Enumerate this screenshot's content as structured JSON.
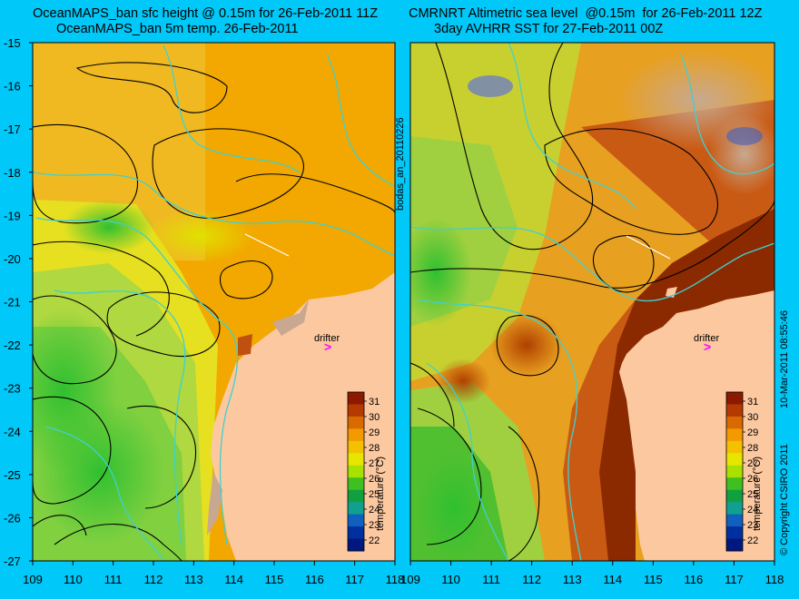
{
  "left_panel": {
    "title_line1": "OceanMAPS_ban sfc height @ 0.15m for 26-Feb-2011 11Z",
    "title_line2": "OceanMAPS_ban 5m temp. 26-Feb-2011"
  },
  "right_panel": {
    "title_line1": "CMRNRT Altimetric sea level  @0.15m  for 26-Feb-2011 12Z",
    "title_line2": "3day AVHRR SST for 27-Feb-2011 00Z"
  },
  "side_labels": {
    "analysis_id": "bodas_an_20110226",
    "timestamp": "10-Mar-2011 08:55:46",
    "copyright": "© Copyright CSIRO 2011"
  },
  "y_ticks": [
    "-15",
    "-16",
    "-17",
    "-18",
    "-19",
    "-20",
    "-21",
    "-22",
    "-23",
    "-24",
    "-25",
    "-26",
    "-27"
  ],
  "x_ticks": [
    "109",
    "110",
    "111",
    "112",
    "113",
    "114",
    "115",
    "116",
    "117",
    "118"
  ],
  "drifter_label": "drifter",
  "colorbar": {
    "label": "temperature (°C)",
    "ticks": [
      "31",
      "30",
      "29",
      "28",
      "27",
      "26",
      "25",
      "24",
      "23",
      "22"
    ],
    "colors": [
      "#8b1a00",
      "#b53a00",
      "#d86a00",
      "#f29a00",
      "#f5c000",
      "#e6e600",
      "#a8e000",
      "#40c020",
      "#10a040",
      "#10a090",
      "#1060c0",
      "#0030a0",
      "#001880"
    ]
  },
  "colors": {
    "background": "#00c8f8",
    "land": "#fcc8a0",
    "contour": "#000000",
    "isobath": "#40d0d0",
    "drifter_marker": "#ff00ff"
  }
}
